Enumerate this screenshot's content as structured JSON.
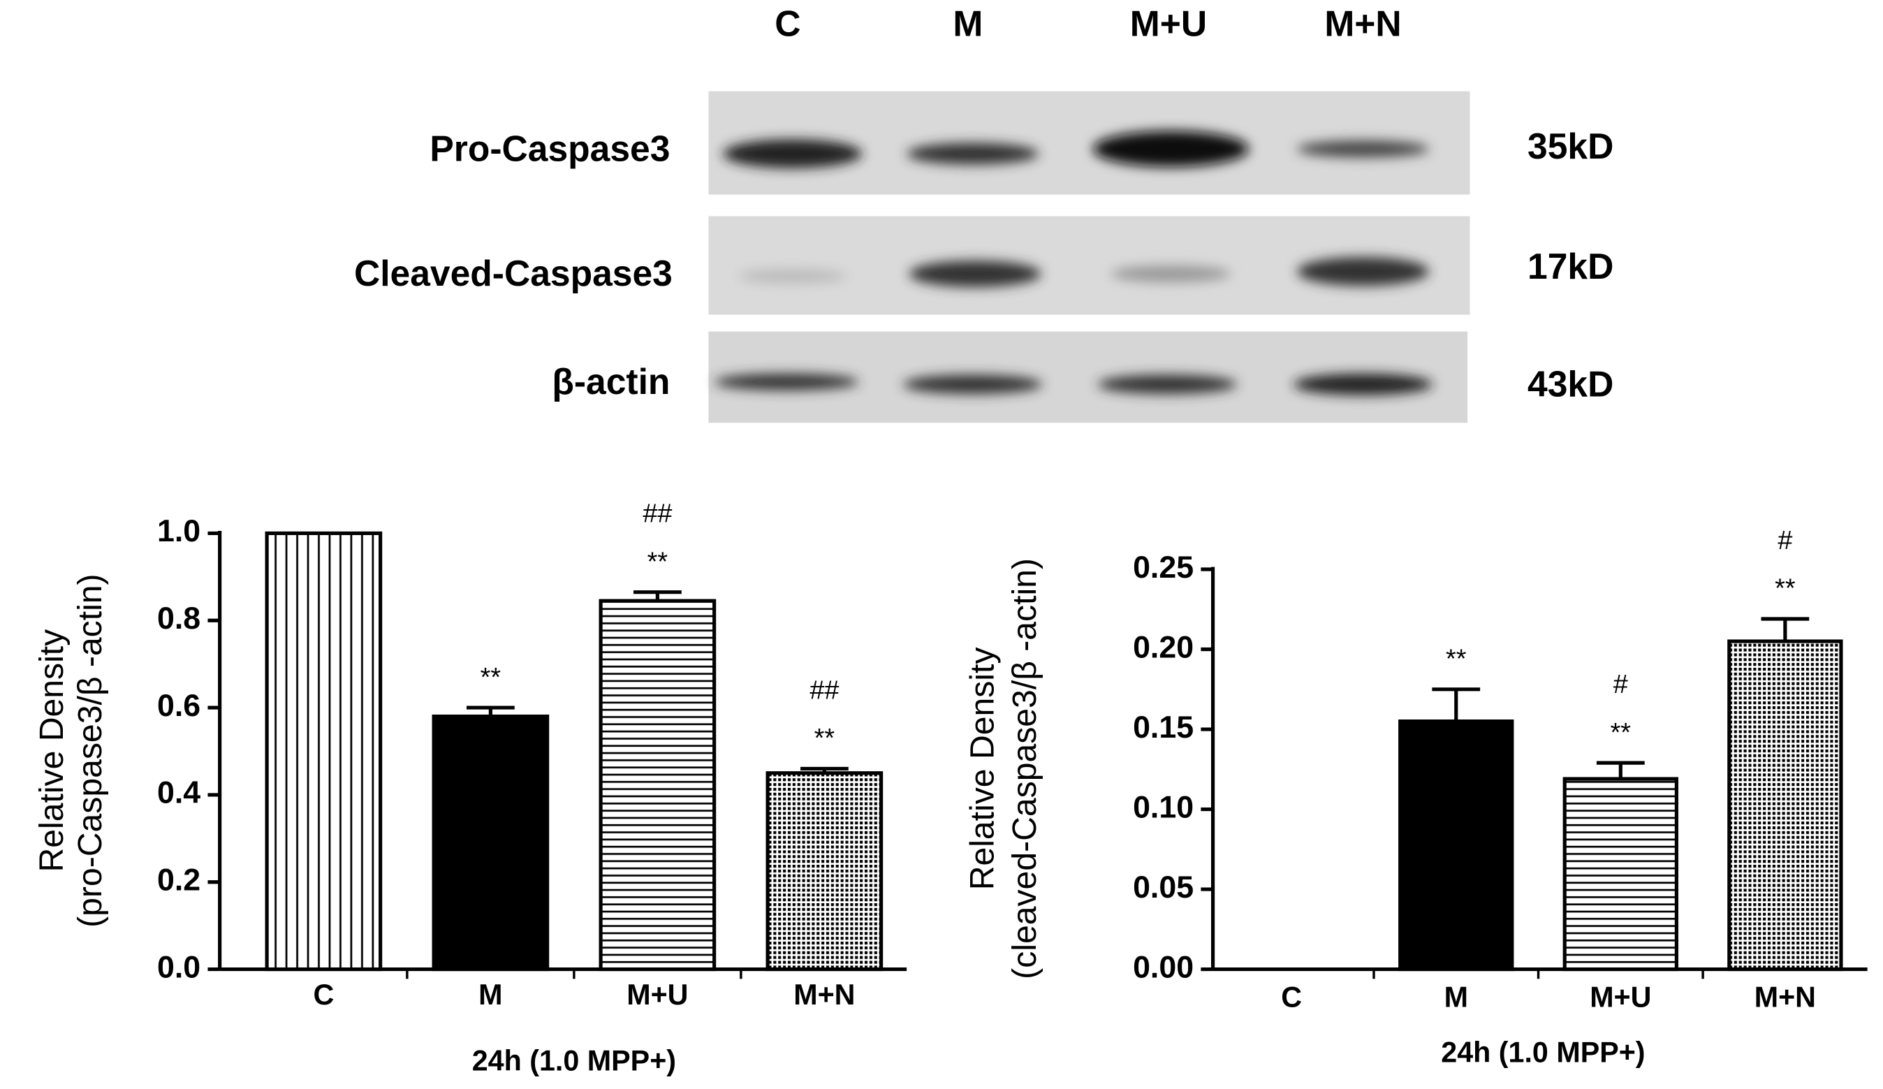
{
  "blot": {
    "lanes": [
      "C",
      "M",
      "M+U",
      "M+N"
    ],
    "rows": [
      {
        "label": "Pro-Caspase3",
        "size": "35kD"
      },
      {
        "label": "Cleaved-Caspase3",
        "size": "17kD"
      },
      {
        "label": "β-actin",
        "size": "43kD"
      }
    ]
  },
  "chart_data": [
    {
      "type": "bar",
      "ylabel": [
        "Relative Density",
        "(pro-Caspase3/β -actin)"
      ],
      "xlabel": "24h (1.0 MPP+)",
      "categories": [
        "C",
        "M",
        "M+U",
        "M+N"
      ],
      "values": [
        1.0,
        0.58,
        0.845,
        0.45
      ],
      "errors": [
        0,
        0.02,
        0.02,
        0.01
      ],
      "annotations": [
        [],
        [
          "**"
        ],
        [
          "**",
          "##"
        ],
        [
          "**",
          "##"
        ]
      ],
      "patterns": [
        "vertical",
        "solid",
        "horizontal",
        "dots"
      ],
      "ylim": [
        0,
        1
      ],
      "yticks": [
        {
          "value": 0,
          "label": "0.0"
        },
        0.2,
        0.4,
        0.6,
        0.8,
        {
          "value": 1,
          "label": "1.0"
        }
      ]
    },
    {
      "type": "bar",
      "ylabel": [
        "Relative Density",
        "(cleaved-Caspase3/β -actin)"
      ],
      "xlabel": "24h (1.0 MPP+)",
      "categories": [
        "C",
        "M",
        "M+U",
        "M+N"
      ],
      "values": [
        0,
        0.155,
        0.119,
        0.205
      ],
      "errors": [
        0,
        0.02,
        0.01,
        0.014
      ],
      "annotations": [
        [],
        [
          "**"
        ],
        [
          "**",
          "#"
        ],
        [
          "**",
          "#"
        ]
      ],
      "patterns": [
        "vertical",
        "solid",
        "horizontal",
        "dots"
      ],
      "ylim": [
        0,
        0.25
      ],
      "yticks": [
        {
          "value": 0,
          "label": "0.00"
        },
        0.05,
        {
          "value": 0.1,
          "label": "0.10"
        },
        0.15,
        {
          "value": 0.2,
          "label": "0.20"
        },
        0.25
      ]
    }
  ]
}
